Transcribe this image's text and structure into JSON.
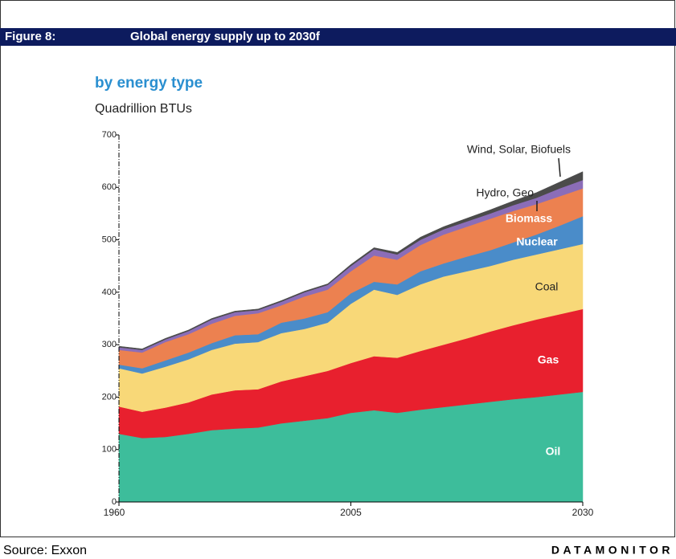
{
  "chart_data": {
    "type": "stacked_area",
    "figure_label": "Figure 8:",
    "title": "Global energy supply up to 2030f",
    "subtitle": "by energy type",
    "y_axis_label": "Quadrillion BTUs",
    "categories": [
      "1960",
      null,
      null,
      null,
      null,
      null,
      null,
      null,
      null,
      null,
      "2005",
      null,
      null,
      null,
      null,
      null,
      null,
      null,
      null,
      null,
      "2030"
    ],
    "ylim": [
      0,
      700
    ],
    "yticks": [
      0,
      100,
      200,
      300,
      400,
      500,
      600,
      700
    ],
    "series": [
      {
        "name": "Oil",
        "color": "#3dbd9b",
        "values": [
          130,
          122,
          124,
          130,
          137,
          140,
          142,
          150,
          155,
          160,
          170,
          175,
          170,
          176,
          181,
          186,
          191,
          196,
          200,
          205,
          210
        ]
      },
      {
        "name": "Gas",
        "color": "#e8202e",
        "values": [
          52,
          50,
          56,
          60,
          68,
          73,
          73,
          80,
          85,
          90,
          95,
          103,
          105,
          112,
          119,
          126,
          134,
          141,
          148,
          153,
          158
        ]
      },
      {
        "name": "Coal",
        "color": "#f8d878",
        "values": [
          73,
          73,
          78,
          82,
          85,
          89,
          90,
          92,
          90,
          92,
          113,
          127,
          120,
          127,
          130,
          128,
          125,
          125,
          124,
          124,
          124
        ]
      },
      {
        "name": "Nuclear",
        "color": "#4a8cc9",
        "values": [
          7,
          10,
          12,
          13,
          13,
          16,
          15,
          20,
          20,
          20,
          20,
          15,
          20,
          25,
          25,
          28,
          30,
          33,
          38,
          45,
          53
        ]
      },
      {
        "name": "Biomass",
        "color": "#ec8150",
        "values": [
          28,
          30,
          35,
          35,
          37,
          37,
          40,
          33,
          42,
          43,
          42,
          50,
          47,
          50,
          55,
          57,
          60,
          60,
          58,
          56,
          53
        ]
      },
      {
        "name": "Hydro, Geo",
        "color": "#8b6db8",
        "values": [
          5,
          5,
          5,
          6,
          8,
          7,
          6,
          7,
          8,
          9,
          10,
          12,
          10,
          10,
          10,
          10,
          10,
          11,
          12,
          15,
          16
        ]
      },
      {
        "name": "Wind, Solar, Biofuels",
        "color": "#4b4b4b",
        "values": [
          2,
          2,
          2,
          2,
          2,
          2,
          2,
          2,
          2,
          2,
          3,
          3,
          4,
          5,
          5,
          6,
          7,
          8,
          10,
          12,
          16
        ]
      }
    ],
    "source": "Source: Exxon",
    "brand": "DATAMONITOR"
  }
}
